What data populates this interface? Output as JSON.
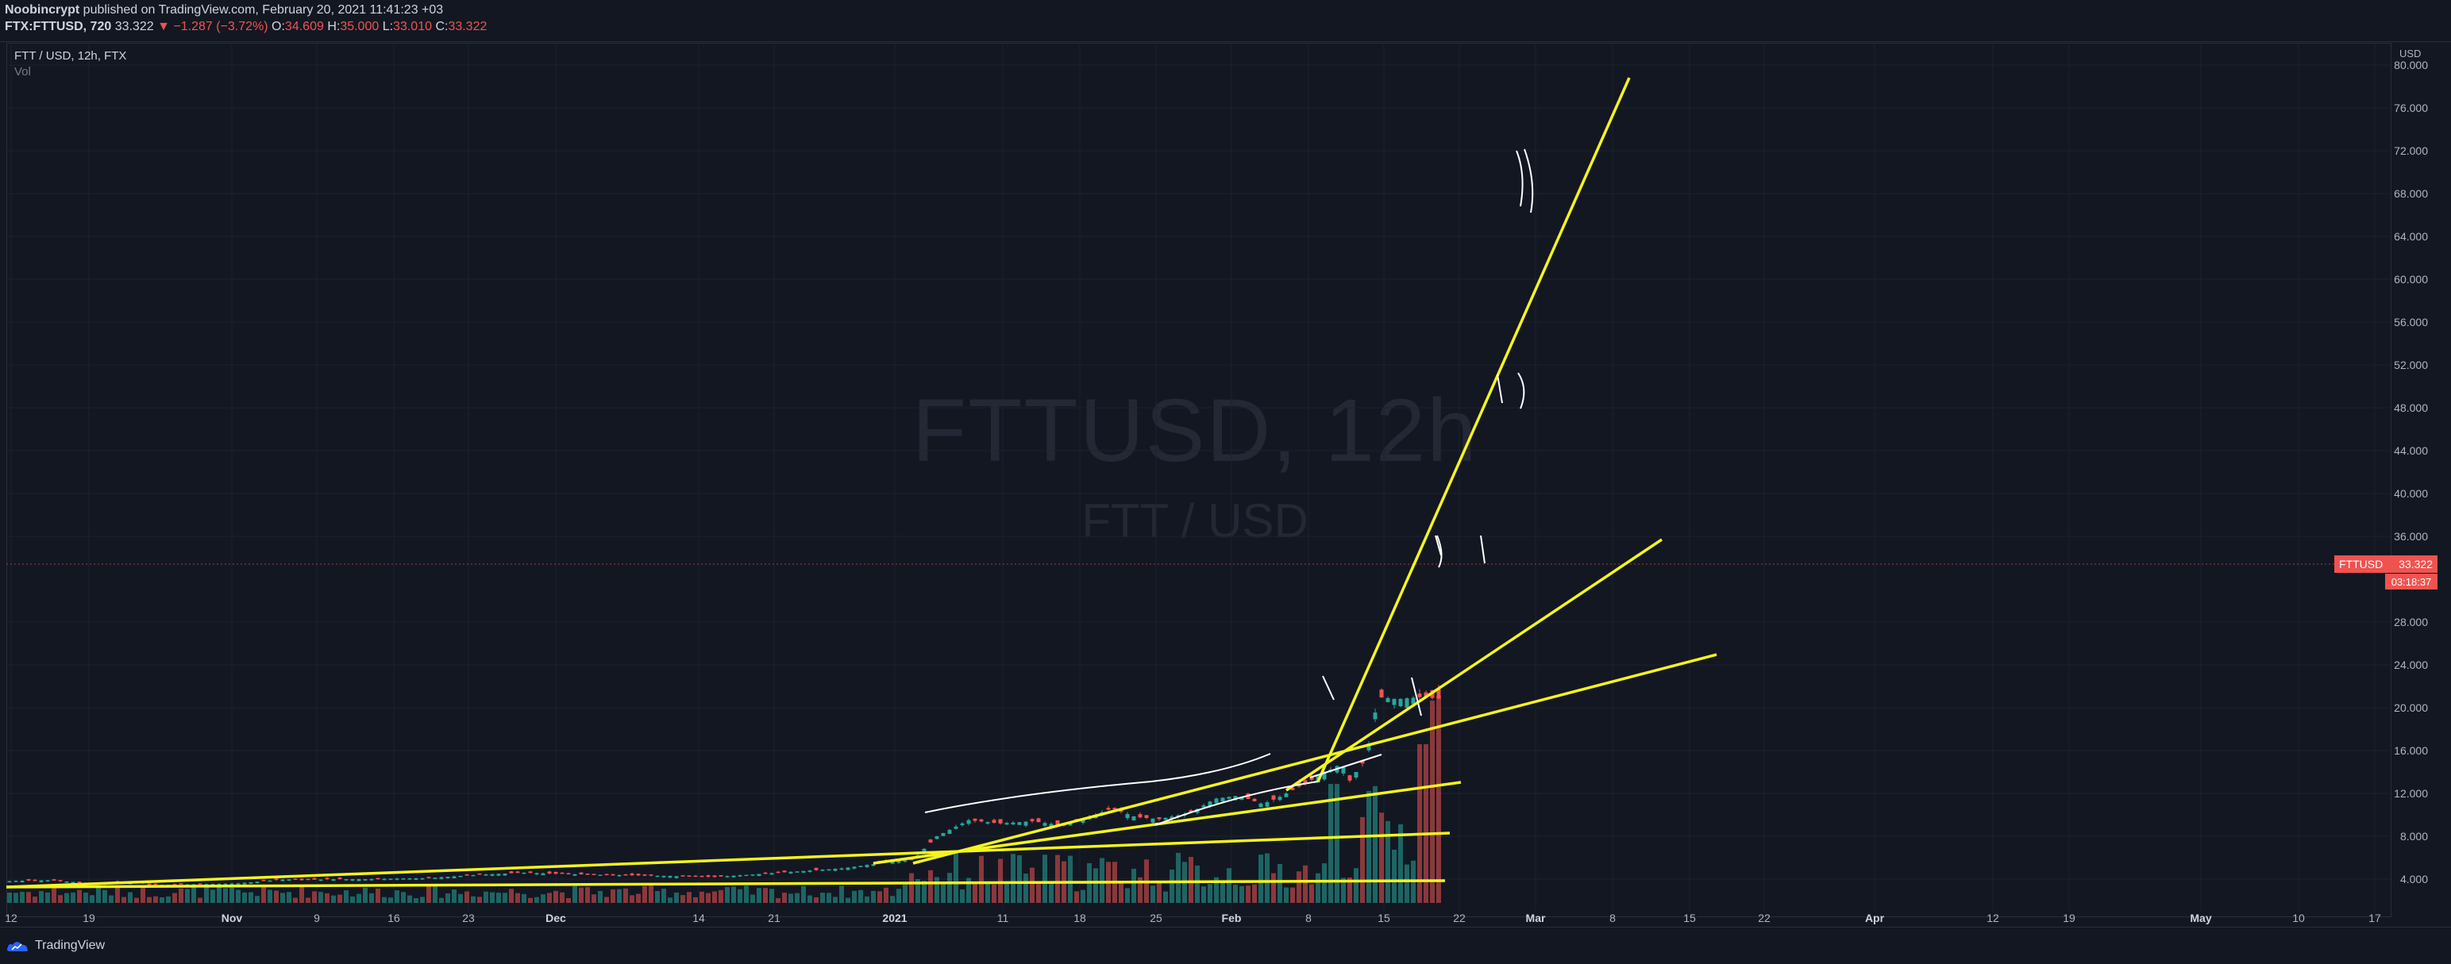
{
  "header": {
    "author": "Noobincrypt",
    "published": "published on TradingView.com, February 20, 2021 11:41:23 +03",
    "symbol": "FTX:FTTUSD, 720",
    "last": "33.322",
    "change": "−1.287 (−3.72%)",
    "open_label": "O:",
    "open": "34.609",
    "high_label": "H:",
    "high": "35.000",
    "low_label": "L:",
    "low": "33.010",
    "close_label": "C:",
    "close": "33.322"
  },
  "legend": {
    "title": "FTT / USD, 12h, FTX",
    "volume": "Vol"
  },
  "watermark": {
    "main": "FTTUSD, 12h",
    "sub": "FTT / USD"
  },
  "price_axis": {
    "unit": "USD",
    "ticks": [
      "80.000",
      "76.000",
      "72.000",
      "68.000",
      "64.000",
      "60.000",
      "56.000",
      "52.000",
      "48.000",
      "44.000",
      "40.000",
      "36.000",
      "28.000",
      "24.000",
      "20.000",
      "16.000",
      "12.000",
      "8.000",
      "4.000"
    ]
  },
  "time_axis": {
    "ticks": [
      "12",
      "19",
      "Nov",
      "9",
      "16",
      "23",
      "Dec",
      "14",
      "21",
      "2021",
      "11",
      "18",
      "25",
      "Feb",
      "8",
      "15",
      "22",
      "Mar",
      "8",
      "15",
      "22",
      "Apr",
      "12",
      "19",
      "May",
      "10",
      "17"
    ]
  },
  "badges": {
    "symbol": "FTTUSD",
    "price": "33.322",
    "countdown": "03:18:37"
  },
  "footer": {
    "brand": "TradingView"
  },
  "colors": {
    "background": "#131722",
    "up": "#26a69a",
    "down": "#ef5350",
    "drawing_yellow": "#f5f51e",
    "drawing_white": "#ffffff"
  }
}
